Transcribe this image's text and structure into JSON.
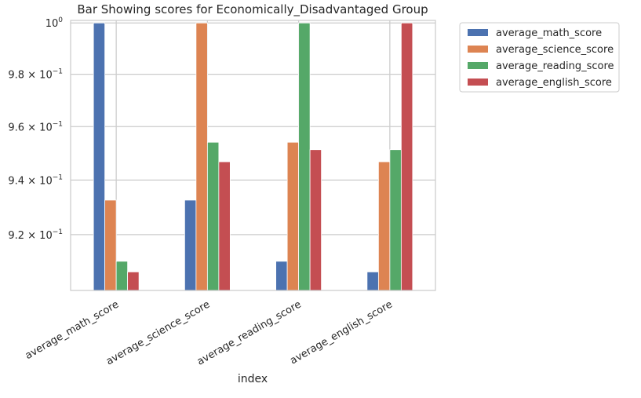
{
  "chart_data": {
    "type": "bar",
    "title": "Bar Showing scores for Economically_Disadvantaged Group",
    "xlabel": "index",
    "ylabel": "",
    "yscale": "log",
    "ylim": [
      0.9,
      1.001
    ],
    "grid": true,
    "legend_position": "outside-top-right",
    "categories": [
      "average_math_score",
      "average_science_score",
      "average_reading_score",
      "average_english_score"
    ],
    "yticks": [
      {
        "value": 0.92,
        "base": "9.2 × 10",
        "exp": "−1"
      },
      {
        "value": 0.94,
        "base": "9.4 × 10",
        "exp": "−1"
      },
      {
        "value": 0.96,
        "base": "9.6 × 10",
        "exp": "−1"
      },
      {
        "value": 0.98,
        "base": "9.8 × 10",
        "exp": "−1"
      },
      {
        "value": 1.0,
        "base": "10",
        "exp": "0"
      }
    ],
    "series": [
      {
        "name": "average_math_score",
        "color": "#4c72b0",
        "values": [
          1.0,
          0.9326,
          0.9104,
          0.9066
        ]
      },
      {
        "name": "average_science_score",
        "color": "#dd8452",
        "values": [
          0.9326,
          1.0,
          0.9541,
          0.9468
        ]
      },
      {
        "name": "average_reading_score",
        "color": "#55a868",
        "values": [
          0.9104,
          0.9541,
          1.0,
          0.9513
        ]
      },
      {
        "name": "average_english_score",
        "color": "#c44e52",
        "values": [
          0.9066,
          0.9468,
          0.9513,
          1.0
        ]
      }
    ]
  }
}
